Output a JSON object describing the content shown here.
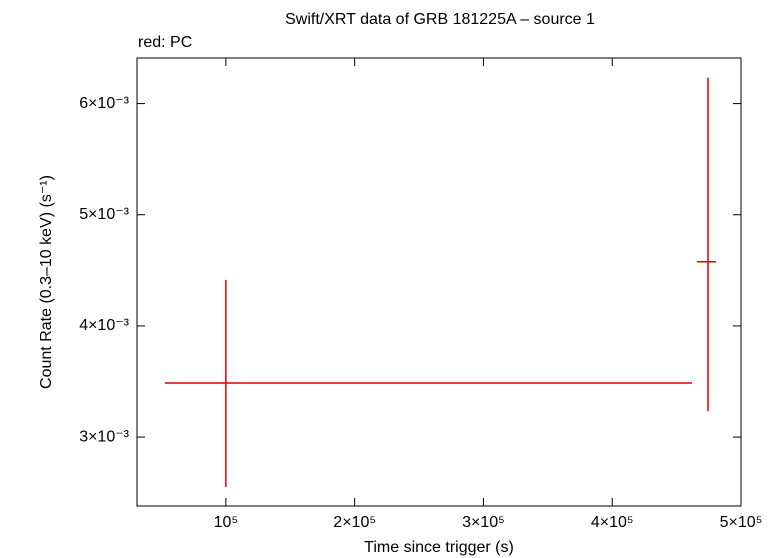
{
  "chart_data": {
    "type": "errorbar",
    "title": "Swift/XRT data of GRB 181225A – source 1",
    "annotation": "red: PC",
    "xlabel": "Time since trigger (s)",
    "ylabel": "Count Rate (0.3–10 keV) (s⁻¹)",
    "xlim": [
      31000,
      500000
    ],
    "ylim": [
      0.00238,
      0.00641
    ],
    "xticks": [
      {
        "value": 100000,
        "label": "10⁵"
      },
      {
        "value": 200000,
        "label": "2×10⁵"
      },
      {
        "value": 300000,
        "label": "3×10⁵"
      },
      {
        "value": 400000,
        "label": "4×10⁵"
      },
      {
        "value": 500000,
        "label": "5×10⁵"
      }
    ],
    "yticks": [
      {
        "value": 0.003,
        "label": "3×10⁻³"
      },
      {
        "value": 0.004,
        "label": "4×10⁻³"
      },
      {
        "value": 0.005,
        "label": "5×10⁻³"
      },
      {
        "value": 0.006,
        "label": "6×10⁻³"
      }
    ],
    "series": [
      {
        "color": "#e00000",
        "x": [
          100000,
          474400
        ],
        "xerr_minus": [
          47300,
          8500
        ],
        "xerr_plus": [
          362000,
          6200
        ],
        "values": [
          0.003486,
          0.004577
        ],
        "yerr_minus": [
          0.000936,
          0.001343
        ],
        "yerr_plus": [
          0.000928,
          0.001657
        ]
      }
    ]
  }
}
